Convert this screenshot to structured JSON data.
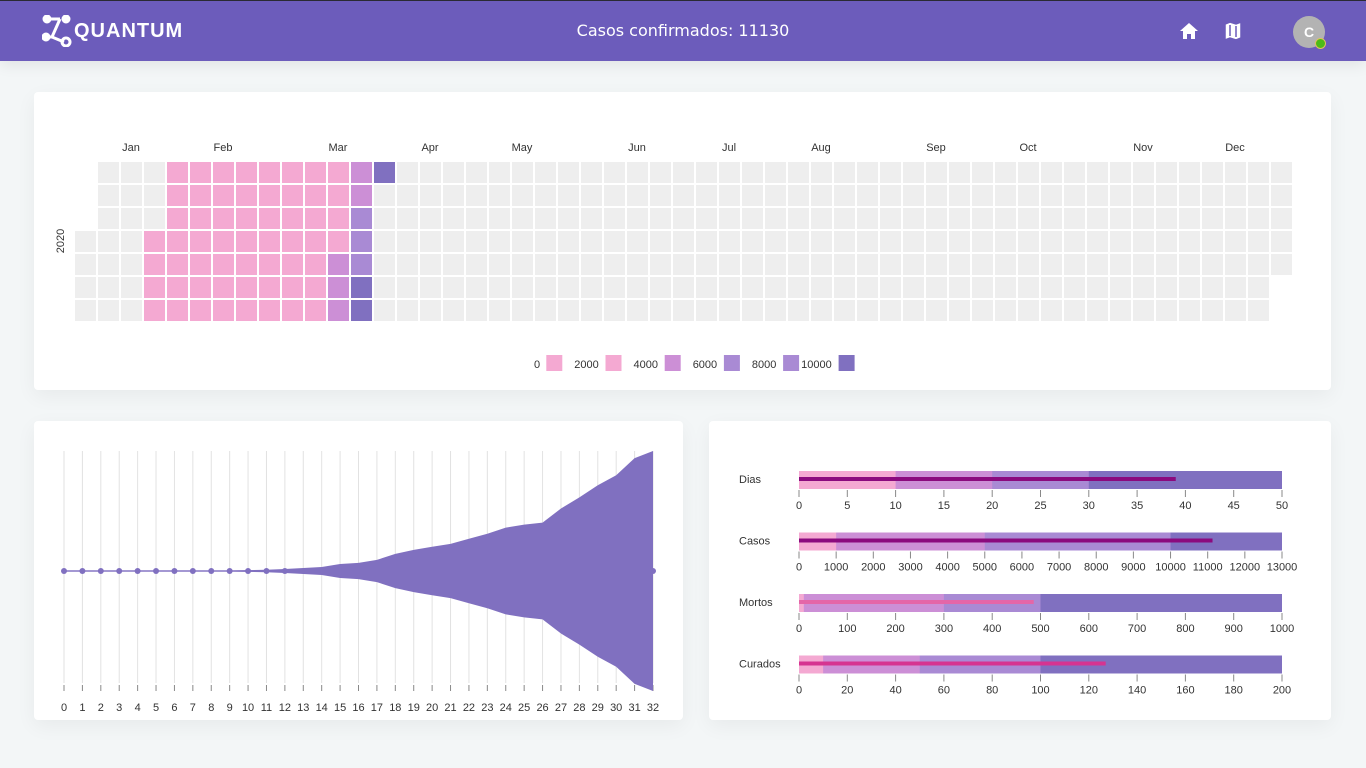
{
  "header": {
    "logo": "QUANTUM",
    "title": "Casos confirmados: 11130",
    "avatar_initial": "C",
    "icons": [
      "home-icon",
      "map-icon"
    ]
  },
  "calendar": {
    "year_label": "2020",
    "months": [
      "Jan",
      "Feb",
      "Mar",
      "Apr",
      "May",
      "Jun",
      "Jul",
      "Aug",
      "Sep",
      "Oct",
      "Nov",
      "Dec"
    ],
    "empty_color": "#eeeeee",
    "ranges": [
      {
        "from": "2020-01-22",
        "to": "2020-03-18",
        "color": "#f4a9d2"
      },
      {
        "from": "2020-03-19",
        "to": "2020-03-23",
        "color": "#cc8fd6"
      },
      {
        "from": "2020-03-24",
        "to": "2020-03-26",
        "color": "#a98ad4"
      },
      {
        "from": "2020-03-27",
        "to": "2020-03-29",
        "color": "#8070c0"
      }
    ],
    "legend": {
      "labels": [
        "0",
        "2000",
        "4000",
        "6000",
        "8000",
        "10000"
      ],
      "colors": [
        "#f4a9d2",
        "#f4a9d2",
        "#cc8fd6",
        "#a98ad4",
        "#a98ad4",
        "#8070c0"
      ]
    }
  },
  "chart_data": [
    {
      "type": "area",
      "title": "stream",
      "x": [
        0,
        1,
        2,
        3,
        4,
        5,
        6,
        7,
        8,
        9,
        10,
        11,
        12,
        13,
        14,
        15,
        16,
        17,
        18,
        19,
        20,
        21,
        22,
        23,
        24,
        25,
        26,
        27,
        28,
        29,
        30,
        31,
        32
      ],
      "values": [
        0,
        0,
        0,
        0,
        0,
        0,
        0,
        0,
        0,
        50,
        80,
        120,
        180,
        280,
        370,
        650,
        750,
        1030,
        1590,
        1960,
        2250,
        2520,
        2990,
        3460,
        4020,
        4300,
        4490,
        5800,
        6830,
        7950,
        8880,
        10470,
        11130
      ],
      "xlim": [
        0,
        32
      ],
      "color": "#8070c0"
    },
    {
      "type": "bar",
      "subtype": "bullet",
      "range_colors": [
        "#f4a9d2",
        "#cc8fd6",
        "#a98ad4",
        "#8070c0"
      ],
      "rows": [
        {
          "label": "Dias",
          "ranges": [
            10,
            20,
            30,
            50
          ],
          "measure": 39,
          "measure_color": "#8b0a7e",
          "max": 50,
          "ticks": [
            "0",
            "5",
            "10",
            "15",
            "20",
            "25",
            "30",
            "35",
            "40",
            "45",
            "50"
          ]
        },
        {
          "label": "Casos",
          "ranges": [
            1000,
            5000,
            10000,
            13000
          ],
          "measure": 11130,
          "measure_color": "#8b0a7e",
          "max": 13000,
          "ticks": [
            "0",
            "1000",
            "2000",
            "3000",
            "4000",
            "5000",
            "6000",
            "7000",
            "8000",
            "9000",
            "10000",
            "11000",
            "12000",
            "13000"
          ]
        },
        {
          "label": "Mortos",
          "ranges": [
            10,
            300,
            500,
            1000
          ],
          "measure": 486,
          "measure_color": "#e466a8",
          "max": 1000,
          "ticks": [
            "0",
            "100",
            "200",
            "300",
            "400",
            "500",
            "600",
            "700",
            "800",
            "900",
            "1000"
          ]
        },
        {
          "label": "Curados",
          "ranges": [
            10,
            50,
            100,
            200
          ],
          "measure": 127,
          "measure_color": "#d63491",
          "max": 200,
          "ticks": [
            "0",
            "20",
            "40",
            "60",
            "80",
            "100",
            "120",
            "140",
            "160",
            "180",
            "200"
          ]
        }
      ]
    }
  ]
}
